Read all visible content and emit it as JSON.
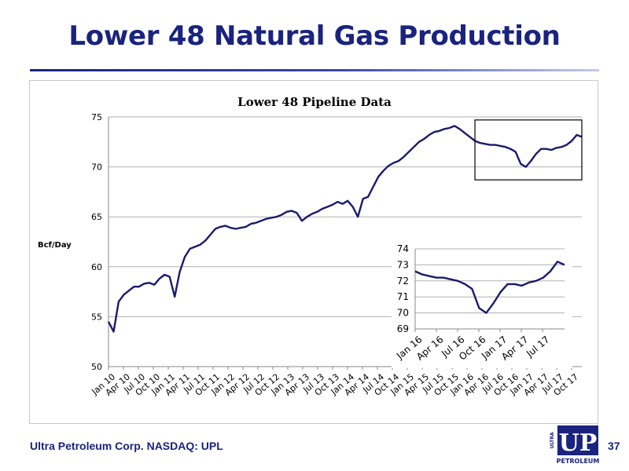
{
  "slide": {
    "title": "Lower 48 Natural Gas Production",
    "footer": "Ultra Petroleum Corp. NASDAQ: UPL",
    "page_number": "37"
  },
  "logo": {
    "text_main": "UP",
    "text_side": "ULTRA",
    "text_sub": "PETROLEUM"
  },
  "colors": {
    "title": "#1a237e",
    "series": "#1a1a6e",
    "grid": "#b0b0b0"
  },
  "chart_data": [
    {
      "type": "line",
      "title": "Lower 48 Pipeline Data",
      "xlabel": "",
      "ylabel": "Bcf/Day",
      "ylim": [
        50,
        75
      ],
      "yticks": [
        50,
        55,
        60,
        65,
        70,
        75
      ],
      "xlim": [
        "2010-01",
        "2017-10"
      ],
      "xtick_labels": [
        "Jan 10",
        "Apr 10",
        "Jul 10",
        "Oct 10",
        "Jan 11",
        "Apr 11",
        "Jul 11",
        "Oct 11",
        "Jan 12",
        "Apr 12",
        "Jul 12",
        "Oct 12",
        "Jan 13",
        "Apr 13",
        "Jul 13",
        "Oct 13",
        "Jan 14",
        "Apr 14",
        "Jul 14",
        "Oct 14",
        "Jan 15",
        "Apr 15",
        "Jul 15",
        "Oct 15",
        "Jan 16",
        "Apr 16",
        "Jul 16",
        "Oct 16",
        "Jan 17",
        "Apr 17",
        "Jul 17",
        "Oct 17"
      ],
      "grid": "horizontal",
      "highlight_box": {
        "x": [
          "2016-01",
          "2017-10"
        ],
        "y": [
          68.7,
          74.7
        ]
      },
      "series": [
        {
          "x": [
            "2010-01",
            "2010-02",
            "2010-03",
            "2010-04",
            "2010-05",
            "2010-06",
            "2010-07",
            "2010-08",
            "2010-09",
            "2010-10",
            "2010-11",
            "2010-12",
            "2011-01",
            "2011-02",
            "2011-03",
            "2011-04",
            "2011-05",
            "2011-06",
            "2011-07",
            "2011-08",
            "2011-09",
            "2011-10",
            "2011-11",
            "2011-12",
            "2012-01",
            "2012-02",
            "2012-03",
            "2012-04",
            "2012-05",
            "2012-06",
            "2012-07",
            "2012-08",
            "2012-09",
            "2012-10",
            "2012-11",
            "2012-12",
            "2013-01",
            "2013-02",
            "2013-03",
            "2013-04",
            "2013-05",
            "2013-06",
            "2013-07",
            "2013-08",
            "2013-09",
            "2013-10",
            "2013-11",
            "2013-12",
            "2014-01",
            "2014-02",
            "2014-03",
            "2014-04",
            "2014-05",
            "2014-06",
            "2014-07",
            "2014-08",
            "2014-09",
            "2014-10",
            "2014-11",
            "2014-12",
            "2015-01",
            "2015-02",
            "2015-03",
            "2015-04",
            "2015-05",
            "2015-06",
            "2015-07",
            "2015-08",
            "2015-09",
            "2015-10",
            "2015-11",
            "2015-12",
            "2016-01",
            "2016-02",
            "2016-03",
            "2016-04",
            "2016-05",
            "2016-06",
            "2016-07",
            "2016-08",
            "2016-09",
            "2016-10",
            "2016-11",
            "2016-12",
            "2017-01",
            "2017-02",
            "2017-03",
            "2017-04",
            "2017-05",
            "2017-06",
            "2017-07",
            "2017-08",
            "2017-09",
            "2017-10"
          ],
          "values": [
            54.5,
            53.5,
            56.5,
            57.2,
            57.6,
            58.0,
            58.0,
            58.3,
            58.4,
            58.2,
            58.8,
            59.2,
            59.0,
            57.0,
            59.5,
            61.0,
            61.8,
            62.0,
            62.2,
            62.6,
            63.2,
            63.8,
            64.0,
            64.1,
            63.9,
            63.8,
            63.9,
            64.0,
            64.3,
            64.4,
            64.6,
            64.8,
            64.9,
            65.0,
            65.2,
            65.5,
            65.6,
            65.4,
            64.6,
            65.0,
            65.3,
            65.5,
            65.8,
            66.0,
            66.2,
            66.5,
            66.3,
            66.6,
            66.0,
            65.0,
            66.8,
            67.0,
            68.0,
            69.0,
            69.6,
            70.1,
            70.4,
            70.6,
            71.0,
            71.5,
            72.0,
            72.5,
            72.8,
            73.2,
            73.5,
            73.6,
            73.8,
            73.9,
            74.1,
            73.8,
            73.4,
            73.0,
            72.6,
            72.4,
            72.3,
            72.2,
            72.2,
            72.1,
            72.0,
            71.8,
            71.5,
            70.3,
            70.0,
            70.6,
            71.3,
            71.8,
            71.8,
            71.7,
            71.9,
            72.0,
            72.2,
            72.6,
            73.2,
            73.0
          ]
        }
      ]
    },
    {
      "type": "line",
      "title": "",
      "ylim": [
        69,
        74
      ],
      "yticks": [
        69,
        70,
        71,
        72,
        73,
        74
      ],
      "xlim": [
        "2016-01",
        "2017-10"
      ],
      "xtick_labels": [
        "Jan 16",
        "Apr 16",
        "Jul 16",
        "Oct 16",
        "Jan 17",
        "Apr 17",
        "Jul 17"
      ],
      "grid": "horizontal",
      "series": [
        {
          "x": [
            "2016-01",
            "2016-02",
            "2016-03",
            "2016-04",
            "2016-05",
            "2016-06",
            "2016-07",
            "2016-08",
            "2016-09",
            "2016-10",
            "2016-11",
            "2016-12",
            "2017-01",
            "2017-02",
            "2017-03",
            "2017-04",
            "2017-05",
            "2017-06",
            "2017-07",
            "2017-08",
            "2017-09",
            "2017-10"
          ],
          "values": [
            72.6,
            72.4,
            72.3,
            72.2,
            72.2,
            72.1,
            72.0,
            71.8,
            71.5,
            70.3,
            70.0,
            70.6,
            71.3,
            71.8,
            71.8,
            71.7,
            71.9,
            72.0,
            72.2,
            72.6,
            73.2,
            73.0
          ]
        }
      ]
    }
  ]
}
